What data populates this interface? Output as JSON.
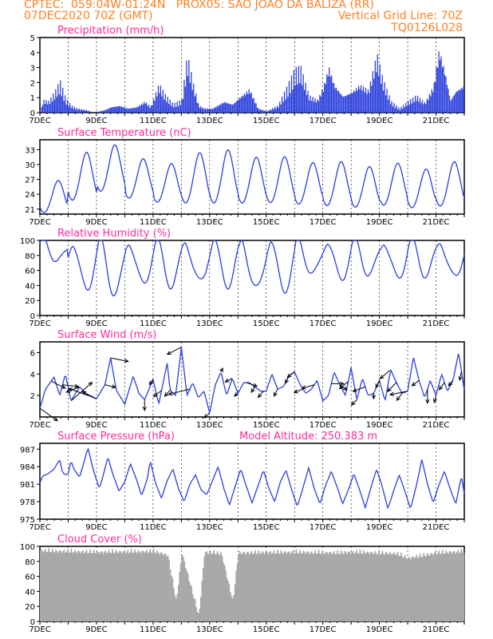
{
  "header": {
    "line1": "CPTEC:  059:04W-01:24N   PROX05: SAO JOAO DA BALIZA (RR)",
    "line2_left": "07DEC2020 70Z (GMT)",
    "line2_right": "Vertical Grid Line: 70Z",
    "line3_right": "TQ0126L028"
  },
  "colors": {
    "header": "#ff7f1f",
    "title": "#ff2a9a",
    "line": "#2a3fdc",
    "bar": "#2a3fdc",
    "cloud": "#a8a8a8",
    "arrow": "#000000"
  },
  "chart_data": [
    {
      "id": "precip",
      "type": "bar",
      "title": "Precipitation (mm/h)",
      "ylim": [
        0,
        5
      ],
      "yticks": [
        0,
        1,
        2,
        3,
        4,
        5
      ],
      "x_start_day": 7,
      "x_end_day": 22,
      "xtick_labels": [
        "7DEC",
        "9DEC",
        "11DEC",
        "13DEC",
        "15DEC",
        "17DEC",
        "19DEC",
        "21DEC"
      ],
      "anchors": [
        [
          7.0,
          0
        ],
        [
          7.1,
          0.9
        ],
        [
          7.3,
          0.8
        ],
        [
          7.5,
          1.4
        ],
        [
          7.7,
          2.2
        ],
        [
          7.9,
          1.0
        ],
        [
          8.1,
          0.5
        ],
        [
          8.3,
          0.3
        ],
        [
          8.6,
          0.2
        ],
        [
          8.9,
          0
        ],
        [
          9.3,
          0.2
        ],
        [
          9.5,
          0.4
        ],
        [
          9.8,
          0.5
        ],
        [
          10.1,
          0.3
        ],
        [
          10.4,
          0.4
        ],
        [
          10.7,
          0.8
        ],
        [
          10.9,
          0.4
        ],
        [
          11.2,
          2.0
        ],
        [
          11.4,
          1.3
        ],
        [
          11.7,
          0.6
        ],
        [
          12.0,
          0.9
        ],
        [
          12.2,
          4.0
        ],
        [
          12.4,
          2.1
        ],
        [
          12.6,
          0.5
        ],
        [
          12.8,
          0.3
        ],
        [
          13.1,
          0.3
        ],
        [
          13.5,
          0.8
        ],
        [
          13.8,
          0.6
        ],
        [
          14.1,
          1.2
        ],
        [
          14.4,
          1.7
        ],
        [
          14.7,
          0.3
        ],
        [
          15.0,
          0.1
        ],
        [
          15.4,
          0.5
        ],
        [
          15.7,
          1.7
        ],
        [
          16.0,
          3.0
        ],
        [
          16.2,
          3.2
        ],
        [
          16.5,
          1.2
        ],
        [
          16.8,
          0.9
        ],
        [
          17.0,
          1.8
        ],
        [
          17.2,
          3.3
        ],
        [
          17.4,
          2.0
        ],
        [
          17.7,
          1.2
        ],
        [
          18.0,
          1.5
        ],
        [
          18.3,
          2.0
        ],
        [
          18.6,
          1.6
        ],
        [
          18.9,
          4.1
        ],
        [
          19.1,
          2.4
        ],
        [
          19.4,
          0.8
        ],
        [
          19.7,
          0.3
        ],
        [
          20.0,
          0.8
        ],
        [
          20.3,
          1.2
        ],
        [
          20.6,
          0.7
        ],
        [
          20.9,
          1.9
        ],
        [
          21.1,
          4.6
        ],
        [
          21.3,
          3.0
        ],
        [
          21.5,
          0.9
        ],
        [
          21.7,
          1.6
        ],
        [
          22.0,
          2.0
        ]
      ]
    },
    {
      "id": "temp",
      "type": "line",
      "title": "Surface Temperature (nC)",
      "ylim": [
        20,
        35
      ],
      "yticks": [
        21,
        24,
        27,
        30,
        33
      ],
      "x_start_day": 7,
      "x_end_day": 22,
      "xtick_labels": [
        "7DEC",
        "9DEC",
        "11DEC",
        "13DEC",
        "15DEC",
        "17DEC",
        "19DEC",
        "21DEC"
      ],
      "maxima": [
        26.8,
        32.5,
        34.0,
        31.2,
        30.2,
        32.4,
        33.0,
        31.5,
        31.6,
        30.4,
        30.6,
        29.6,
        30.3,
        29.1,
        30.6
      ],
      "minima": [
        20.3,
        22.8,
        24.6,
        23.2,
        22.4,
        22.2,
        22.2,
        22.2,
        22.3,
        22.0,
        21.7,
        21.4,
        21.8,
        21.3,
        21.6
      ]
    },
    {
      "id": "rh",
      "type": "line",
      "title": "Relative Humidity (%)",
      "ylim": [
        0,
        100
      ],
      "yticks": [
        0,
        20,
        40,
        60,
        80,
        100
      ],
      "x_start_day": 7,
      "x_end_day": 22,
      "xtick_labels": [
        "7DEC",
        "9DEC",
        "11DEC",
        "13DEC",
        "15DEC",
        "17DEC",
        "19DEC",
        "21DEC"
      ],
      "maxima": [
        100,
        98,
        100,
        100,
        100,
        100,
        100,
        100,
        100,
        100,
        100,
        100,
        100,
        100,
        100
      ],
      "minima": [
        72,
        36,
        28,
        42,
        40,
        44,
        41,
        34,
        35,
        54,
        50,
        54,
        50,
        54,
        50
      ]
    },
    {
      "id": "wind",
      "type": "line",
      "title": "Surface Wind (m/s)",
      "ylim": [
        0,
        7
      ],
      "yticks": [
        2,
        4,
        6
      ],
      "x_start_day": 7,
      "x_end_day": 22,
      "xtick_labels": [
        "7DEC",
        "9DEC",
        "11DEC",
        "13DEC",
        "15DEC",
        "17DEC",
        "19DEC",
        "21DEC"
      ],
      "anchors": [
        [
          7.0,
          0.8
        ],
        [
          7.2,
          2.6
        ],
        [
          7.5,
          3.7
        ],
        [
          7.7,
          2.0
        ],
        [
          7.9,
          4.0
        ],
        [
          8.1,
          1.5
        ],
        [
          8.4,
          2.8
        ],
        [
          8.7,
          2.0
        ],
        [
          9.0,
          1.7
        ],
        [
          9.3,
          3.0
        ],
        [
          9.5,
          5.5
        ],
        [
          9.7,
          2.5
        ],
        [
          10.0,
          1.2
        ],
        [
          10.3,
          3.8
        ],
        [
          10.5,
          2.2
        ],
        [
          10.7,
          1.6
        ],
        [
          11.0,
          3.5
        ],
        [
          11.2,
          1.2
        ],
        [
          11.5,
          5.0
        ],
        [
          11.6,
          2.5
        ],
        [
          11.8,
          2.0
        ],
        [
          12.0,
          6.5
        ],
        [
          12.2,
          2.0
        ],
        [
          12.4,
          3.2
        ],
        [
          12.6,
          1.8
        ],
        [
          12.8,
          2.4
        ],
        [
          13.0,
          0.4
        ],
        [
          13.2,
          3.0
        ],
        [
          13.4,
          4.2
        ],
        [
          13.6,
          2.0
        ],
        [
          13.8,
          3.6
        ],
        [
          14.0,
          2.2
        ],
        [
          14.2,
          3.2
        ],
        [
          14.4,
          3.2
        ],
        [
          14.6,
          2.8
        ],
        [
          14.8,
          2.4
        ],
        [
          15.0,
          2.4
        ],
        [
          15.2,
          4.0
        ],
        [
          15.4,
          2.6
        ],
        [
          15.6,
          2.8
        ],
        [
          15.8,
          3.8
        ],
        [
          16.0,
          4.2
        ],
        [
          16.2,
          3.0
        ],
        [
          16.4,
          2.2
        ],
        [
          16.6,
          2.6
        ],
        [
          16.8,
          3.4
        ],
        [
          17.0,
          1.5
        ],
        [
          17.2,
          2.0
        ],
        [
          17.4,
          4.2
        ],
        [
          17.6,
          3.0
        ],
        [
          17.8,
          2.0
        ],
        [
          18.0,
          4.6
        ],
        [
          18.2,
          1.6
        ],
        [
          18.4,
          3.6
        ],
        [
          18.6,
          2.0
        ],
        [
          18.8,
          2.2
        ],
        [
          19.0,
          3.4
        ],
        [
          19.2,
          1.5
        ],
        [
          19.4,
          4.4
        ],
        [
          19.6,
          3.2
        ],
        [
          19.8,
          2.2
        ],
        [
          20.0,
          2.4
        ],
        [
          20.2,
          5.6
        ],
        [
          20.4,
          3.4
        ],
        [
          20.6,
          1.8
        ],
        [
          20.8,
          3.4
        ],
        [
          21.0,
          2.0
        ],
        [
          21.2,
          4.0
        ],
        [
          21.4,
          2.4
        ],
        [
          21.6,
          3.4
        ],
        [
          21.8,
          6.0
        ],
        [
          22.0,
          2.5
        ]
      ],
      "vectors": [
        [
          7.0,
          2.0,
          -1.4
        ],
        [
          7.4,
          1.6,
          -0.8
        ],
        [
          7.8,
          1.8,
          -0.2
        ],
        [
          8.1,
          2.4,
          2.1
        ],
        [
          8.4,
          -1.5,
          -0.6
        ],
        [
          8.7,
          -2.2,
          0.8
        ],
        [
          9.0,
          -1.6,
          0.8
        ],
        [
          9.3,
          1.2,
          -0.3
        ],
        [
          9.5,
          2.0,
          -0.4
        ],
        [
          10.7,
          0.0,
          -1.2
        ],
        [
          11.0,
          -0.4,
          -0.6
        ],
        [
          11.3,
          -0.9,
          -0.7
        ],
        [
          11.6,
          -0.6,
          -0.7
        ],
        [
          12.0,
          -1.6,
          -0.8
        ],
        [
          12.3,
          -2.4,
          -0.6
        ],
        [
          13.0,
          -0.6,
          -0.6
        ],
        [
          13.4,
          0.2,
          0.4
        ],
        [
          13.8,
          -0.8,
          -0.4
        ],
        [
          14.0,
          -0.4,
          -0.3
        ],
        [
          14.3,
          1.2,
          -0.4
        ],
        [
          14.6,
          -0.4,
          -0.6
        ],
        [
          14.9,
          -0.6,
          -0.7
        ],
        [
          15.4,
          -0.4,
          -0.8
        ],
        [
          15.8,
          -0.4,
          -0.8
        ],
        [
          16.0,
          -0.8,
          -0.6
        ],
        [
          16.3,
          -1.0,
          -0.4
        ],
        [
          16.7,
          -1.4,
          -0.4
        ],
        [
          17.3,
          1.4,
          0.0
        ],
        [
          17.6,
          0.8,
          -0.6
        ],
        [
          17.9,
          -1.0,
          -0.8
        ],
        [
          18.2,
          -0.6,
          -0.6
        ],
        [
          18.5,
          -1.4,
          -0.5
        ],
        [
          18.8,
          0.0,
          -0.6
        ],
        [
          19.0,
          -0.4,
          -0.8
        ],
        [
          19.4,
          -1.2,
          -1.0
        ],
        [
          19.6,
          -1.0,
          -1.0
        ],
        [
          19.8,
          -0.6,
          -0.8
        ],
        [
          20.0,
          -2.0,
          -0.4
        ],
        [
          20.4,
          -0.8,
          -0.6
        ],
        [
          20.7,
          0.0,
          -1.6
        ],
        [
          21.0,
          -0.2,
          -0.8
        ],
        [
          21.3,
          -0.6,
          -0.8
        ],
        [
          21.6,
          -0.5,
          -0.6
        ],
        [
          21.9,
          -0.2,
          -1.0
        ]
      ]
    },
    {
      "id": "pres",
      "type": "line",
      "title": "Surface Pressure (hPa)",
      "extra_label": "Model Altitude: 250.383 m",
      "ylim": [
        975,
        988
      ],
      "yticks": [
        975,
        978,
        981,
        984,
        987
      ],
      "x_start_day": 7,
      "x_end_day": 22,
      "xtick_labels": [
        "7DEC",
        "9DEC",
        "11DEC",
        "13DEC",
        "15DEC",
        "17DEC",
        "19DEC",
        "21DEC"
      ],
      "anchors": [
        [
          7.0,
          981.2
        ],
        [
          7.1,
          982.4
        ],
        [
          7.3,
          982.8
        ],
        [
          7.5,
          983.6
        ],
        [
          7.7,
          985.2
        ],
        [
          7.8,
          983.0
        ],
        [
          7.9,
          982.6
        ],
        [
          8.0,
          982.8
        ],
        [
          8.1,
          985.0
        ],
        [
          8.2,
          983.6
        ],
        [
          8.4,
          982.2
        ],
        [
          8.5,
          983.8
        ],
        [
          8.7,
          987.2
        ],
        [
          8.9,
          983.2
        ],
        [
          9.1,
          980.3
        ],
        [
          9.2,
          981.8
        ],
        [
          9.4,
          985.6
        ],
        [
          9.6,
          982.4
        ],
        [
          9.8,
          979.8
        ],
        [
          10.0,
          981.4
        ],
        [
          10.2,
          984.5
        ],
        [
          10.4,
          982.0
        ],
        [
          10.6,
          979.0
        ],
        [
          10.8,
          982.0
        ],
        [
          10.9,
          985.0
        ],
        [
          11.1,
          981.0
        ],
        [
          11.3,
          978.6
        ],
        [
          11.5,
          981.6
        ],
        [
          11.7,
          983.6
        ],
        [
          11.9,
          980.2
        ],
        [
          12.1,
          978.0
        ],
        [
          12.3,
          981.0
        ],
        [
          12.5,
          982.6
        ],
        [
          12.7,
          980.0
        ],
        [
          12.9,
          979.2
        ],
        [
          13.1,
          981.6
        ],
        [
          13.3,
          984.0
        ],
        [
          13.5,
          980.3
        ],
        [
          13.7,
          977.4
        ],
        [
          13.9,
          980.6
        ],
        [
          14.1,
          983.6
        ],
        [
          14.3,
          980.6
        ],
        [
          14.5,
          977.8
        ],
        [
          14.7,
          980.6
        ],
        [
          14.9,
          983.4
        ],
        [
          15.1,
          980.2
        ],
        [
          15.3,
          978.0
        ],
        [
          15.5,
          981.4
        ],
        [
          15.7,
          983.4
        ],
        [
          15.9,
          980.0
        ],
        [
          16.1,
          977.2
        ],
        [
          16.3,
          980.4
        ],
        [
          16.5,
          983.8
        ],
        [
          16.7,
          980.2
        ],
        [
          16.9,
          977.6
        ],
        [
          17.1,
          980.8
        ],
        [
          17.3,
          983.2
        ],
        [
          17.5,
          980.6
        ],
        [
          17.7,
          977.6
        ],
        [
          17.9,
          980.0
        ],
        [
          18.1,
          982.8
        ],
        [
          18.3,
          980.0
        ],
        [
          18.5,
          977.0
        ],
        [
          18.7,
          980.4
        ],
        [
          18.9,
          983.6
        ],
        [
          19.1,
          980.6
        ],
        [
          19.3,
          976.8
        ],
        [
          19.5,
          979.8
        ],
        [
          19.7,
          982.6
        ],
        [
          19.9,
          979.8
        ],
        [
          20.1,
          976.8
        ],
        [
          20.3,
          980.6
        ],
        [
          20.5,
          985.2
        ],
        [
          20.7,
          981.0
        ],
        [
          20.9,
          977.8
        ],
        [
          21.1,
          980.8
        ],
        [
          21.3,
          983.2
        ],
        [
          21.5,
          980.2
        ],
        [
          21.7,
          977.6
        ],
        [
          21.9,
          982.4
        ],
        [
          22.0,
          979.4
        ]
      ]
    },
    {
      "id": "cloud",
      "type": "area",
      "title": "Cloud Cover (%)",
      "ylim": [
        0,
        100
      ],
      "yticks": [
        0,
        20,
        40,
        60,
        80,
        100
      ],
      "x_start_day": 7,
      "x_end_day": 22,
      "xtick_labels": [
        "7DEC",
        "9DEC",
        "11DEC",
        "13DEC",
        "15DEC",
        "17DEC",
        "19DEC",
        "21DEC"
      ],
      "anchors": [
        [
          7.0,
          98
        ],
        [
          9.0,
          96
        ],
        [
          11.0,
          97
        ],
        [
          11.5,
          92
        ],
        [
          11.8,
          30
        ],
        [
          12.0,
          95
        ],
        [
          12.6,
          10
        ],
        [
          12.8,
          96
        ],
        [
          13.4,
          94
        ],
        [
          13.8,
          30
        ],
        [
          14.0,
          95
        ],
        [
          16.0,
          96
        ],
        [
          17.5,
          95
        ],
        [
          18.0,
          96
        ],
        [
          19.0,
          95
        ],
        [
          19.6,
          94
        ],
        [
          20.0,
          88
        ],
        [
          20.6,
          92
        ],
        [
          21.0,
          95
        ],
        [
          22.0,
          97
        ]
      ]
    }
  ]
}
